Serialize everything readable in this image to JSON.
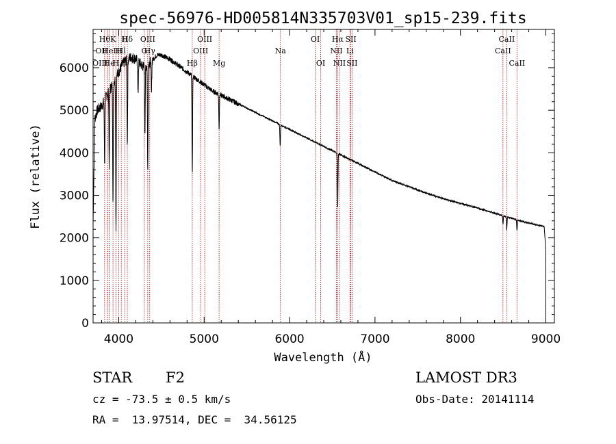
{
  "chart_data": {
    "type": "line",
    "title": "spec-56976-HD005814N335703V01_sp15-239.fits",
    "xlabel": "Wavelength (Å)",
    "ylabel": "Flux (relative)",
    "xlim": [
      3700,
      9100
    ],
    "ylim": [
      0,
      6900
    ],
    "xticks": [
      4000,
      5000,
      6000,
      7000,
      8000,
      9000
    ],
    "yticks": [
      0,
      1000,
      2000,
      3000,
      4000,
      5000,
      6000
    ],
    "grid": false,
    "spectrum_anchors": {
      "x": [
        3700,
        3720,
        3750,
        3800,
        3850,
        3900,
        3950,
        4000,
        4050,
        4100,
        4150,
        4200,
        4250,
        4300,
        4350,
        4400,
        4450,
        4500,
        4600,
        4700,
        4800,
        4900,
        5000,
        5100,
        5200,
        5300,
        5400,
        5500,
        5600,
        5700,
        5800,
        5900,
        6000,
        6100,
        6200,
        6300,
        6400,
        6500,
        6600,
        6700,
        6800,
        7000,
        7200,
        7400,
        7600,
        7800,
        8000,
        8200,
        8400,
        8500,
        8600,
        8700,
        8800,
        8900,
        8980,
        9000
      ],
      "y": [
        2300,
        4800,
        5000,
        5100,
        5300,
        5500,
        5700,
        5900,
        6100,
        6200,
        6250,
        6200,
        6100,
        6000,
        6100,
        6200,
        6300,
        6300,
        6200,
        6050,
        5900,
        5750,
        5600,
        5450,
        5350,
        5250,
        5150,
        5050,
        4950,
        4850,
        4750,
        4650,
        4550,
        4450,
        4350,
        4250,
        4150,
        4050,
        3950,
        3850,
        3750,
        3550,
        3350,
        3200,
        3050,
        2920,
        2810,
        2700,
        2580,
        2520,
        2460,
        2400,
        2350,
        2300,
        2260,
        1700
      ]
    },
    "absorption_lines": [
      {
        "x": 3835,
        "depth": 1500
      },
      {
        "x": 3889,
        "depth": 1800
      },
      {
        "x": 3933,
        "depth": 2900
      },
      {
        "x": 3968,
        "depth": 3600
      },
      {
        "x": 4101,
        "depth": 2000
      },
      {
        "x": 4226,
        "depth": 800
      },
      {
        "x": 4307,
        "depth": 1500
      },
      {
        "x": 4340,
        "depth": 2500
      },
      {
        "x": 4383,
        "depth": 800
      },
      {
        "x": 4861,
        "depth": 2300
      },
      {
        "x": 5175,
        "depth": 800
      },
      {
        "x": 5890,
        "depth": 500
      },
      {
        "x": 6563,
        "depth": 1300
      },
      {
        "x": 8498,
        "depth": 200
      },
      {
        "x": 8542,
        "depth": 300
      },
      {
        "x": 8662,
        "depth": 250
      }
    ],
    "lines": [
      {
        "x": 3835,
        "label": "Hθ",
        "row": 0,
        "align": "middle"
      },
      {
        "x": 3869,
        "label": "OII",
        "row": 1,
        "align": "end"
      },
      {
        "x": 3889,
        "label": "HeI",
        "row": 1,
        "align": "middle"
      },
      {
        "x": 3870,
        "label": "OIII",
        "row": 2,
        "align": "end"
      },
      {
        "x": 3889,
        "label": "He",
        "row": 2,
        "align": "middle"
      },
      {
        "x": 3933,
        "label": "K",
        "row": 0,
        "align": "middle"
      },
      {
        "x": 3968,
        "label": "H",
        "row": 2,
        "align": "middle"
      },
      {
        "x": 4000,
        "label": "H",
        "row": 1,
        "align": "middle"
      },
      {
        "x": 4030,
        "label": "Hl",
        "row": 1,
        "align": "middle"
      },
      {
        "x": 4070,
        "label": "H",
        "row": 0,
        "align": "middle"
      },
      {
        "x": 4101,
        "label": "Hδ",
        "row": 0,
        "align": "middle"
      },
      {
        "x": 4300,
        "label": "G",
        "row": 1,
        "align": "middle"
      },
      {
        "x": 4340,
        "label": "OIII",
        "row": 0,
        "align": "middle"
      },
      {
        "x": 4363,
        "label": "Hγ",
        "row": 1,
        "align": "middle"
      },
      {
        "x": 4861,
        "label": "Hβ",
        "row": 2,
        "align": "middle"
      },
      {
        "x": 4959,
        "label": "OIII",
        "row": 1,
        "align": "middle"
      },
      {
        "x": 5007,
        "label": "OIII",
        "row": 0,
        "align": "middle"
      },
      {
        "x": 5175,
        "label": "Mg",
        "row": 2,
        "align": "middle"
      },
      {
        "x": 5893,
        "label": "Na",
        "row": 1,
        "align": "middle"
      },
      {
        "x": 6300,
        "label": "OI",
        "row": 0,
        "align": "middle"
      },
      {
        "x": 6364,
        "label": "OI",
        "row": 2,
        "align": "middle"
      },
      {
        "x": 6548,
        "label": "NII",
        "row": 1,
        "align": "middle"
      },
      {
        "x": 6563,
        "label": "Hα",
        "row": 0,
        "align": "middle"
      },
      {
        "x": 6584,
        "label": "NII",
        "row": 2,
        "align": "middle"
      },
      {
        "x": 6707,
        "label": "Li",
        "row": 1,
        "align": "middle"
      },
      {
        "x": 6717,
        "label": "SII",
        "row": 0,
        "align": "middle"
      },
      {
        "x": 6731,
        "label": "SII",
        "row": 2,
        "align": "middle"
      },
      {
        "x": 8498,
        "label": "CaII",
        "row": 1,
        "align": "middle"
      },
      {
        "x": 8542,
        "label": "CaII",
        "row": 0,
        "align": "middle"
      },
      {
        "x": 8662,
        "label": "CaII",
        "row": 2,
        "align": "middle"
      }
    ]
  },
  "info": {
    "object_type": "STAR",
    "spectral_class": "F2",
    "survey": "LAMOST DR3",
    "cz": "cz = -73.5 ± 0.5 km/s",
    "obs_date": "Obs-Date: 20141114",
    "coords": "RA =  13.97514, DEC =  34.56125"
  },
  "colors": {
    "spectrum": "#000000",
    "line_marker": "#b00000",
    "axes": "#000000"
  }
}
